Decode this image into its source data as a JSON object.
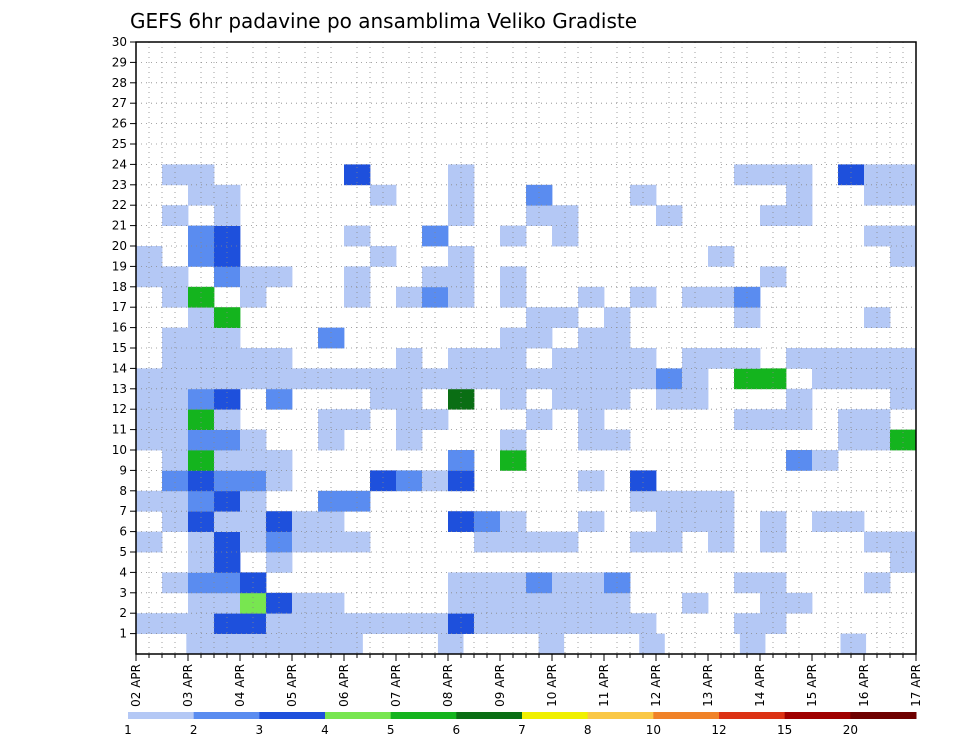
{
  "chart_data": {
    "type": "heatmap",
    "title": "GEFS 6hr padavine po ansamblima Veliko Gradiste",
    "xlabel": "",
    "ylabel": "",
    "x_tick_labels": [
      "02 APR",
      "03 APR",
      "04 APR",
      "05 APR",
      "06 APR",
      "07 APR",
      "08 APR",
      "09 APR",
      "10 APR",
      "11 APR",
      "12 APR",
      "13 APR",
      "14 APR",
      "15 APR",
      "16 APR",
      "17 APR"
    ],
    "y_tick_labels": [
      "1",
      "2",
      "3",
      "4",
      "5",
      "6",
      "7",
      "8",
      "9",
      "10",
      "11",
      "12",
      "13",
      "14",
      "15",
      "16",
      "17",
      "18",
      "19",
      "20",
      "21",
      "22",
      "23",
      "24",
      "25",
      "26",
      "27",
      "28",
      "29",
      "30"
    ],
    "ylim": [
      0,
      30
    ],
    "grid": true,
    "colorbar": {
      "labels": [
        "1",
        "2",
        "3",
        "4",
        "5",
        "6",
        "7",
        "8",
        "10",
        "12",
        "15",
        "20"
      ],
      "colors": [
        "#b4c8f5",
        "#5a8cf0",
        "#1e50dc",
        "#78e650",
        "#14b41e",
        "#0a6e14",
        "#f0f000",
        "#fac846",
        "#f08228",
        "#dc3214",
        "#a00000",
        "#6e0000"
      ]
    },
    "color_key": {
      "1": "#b4c8f5",
      "2": "#5a8cf0",
      "3": "#1e50dc",
      "4": "#78e650",
      "5": "#14b41e",
      "6": "#0a6e14",
      "7": "#f0f000",
      "8": "#fac846",
      "9": "#f08228",
      "10": "#dc3214",
      "11": "#a00000",
      "12": "#6e0000"
    },
    "rows": [
      "..1111111...1...1...1...1...1..",
      "11133111111131111111...11.....",
      "..114311....1111111..1..11....",
      ".1223.......1112112....11...1.",
      "..13.1.......................1",
      "1.1312111....1111..11.1.1...11",
      ".1311311....321..1..111.1.11..",
      "11231..22..........1111.......",
      ".23221...3213....1.3..........",
      ".15111......2.5..........21...",
      "11221..1..1...1..11........115",
      "1151...11.11...1.1.....111.11.",
      "1123.2...11.6.1.111.11...1...1",
      "1111111111111111111121.55.1111",
      ".11111....1.111.1111.111.11111",
      ".111...2......11.11...........",
      "..15...........11.1....1....1.",
      ".15.1...1.121.1..1.1.112......",
      "11.211..1..11.1.........1.....",
      "1.23.....1..1.........1......1",
      "..23....1..2..1.1...........11",
      ".1.1........1..11...1...11....",
      "..11.....1..1..2...1.....1..11",
      ".11.....3...1..........111.311"
    ]
  }
}
